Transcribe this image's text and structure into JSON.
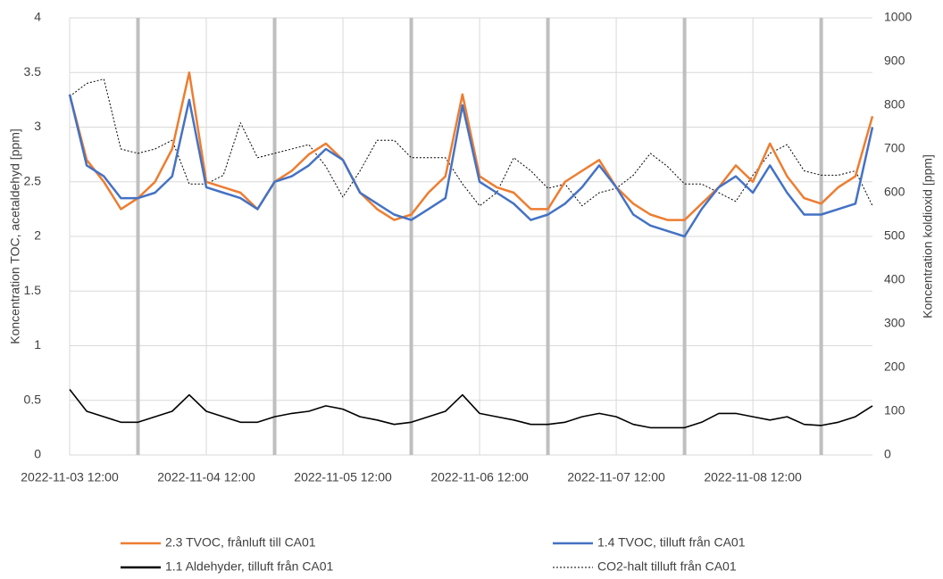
{
  "chart_data": {
    "type": "line",
    "y_label": "Koncentration TOC, acetaldehyd [ppm]",
    "y2_label": "Koncentration koldioxid [ppm]",
    "x": [
      "2022-11-03 12:00",
      "2022-11-03 15:00",
      "2022-11-03 18:00",
      "2022-11-03 21:00",
      "2022-11-04 00:00",
      "2022-11-04 03:00",
      "2022-11-04 06:00",
      "2022-11-04 09:00",
      "2022-11-04 12:00",
      "2022-11-04 15:00",
      "2022-11-04 18:00",
      "2022-11-04 21:00",
      "2022-11-05 00:00",
      "2022-11-05 03:00",
      "2022-11-05 06:00",
      "2022-11-05 09:00",
      "2022-11-05 12:00",
      "2022-11-05 15:00",
      "2022-11-05 18:00",
      "2022-11-05 21:00",
      "2022-11-06 00:00",
      "2022-11-06 03:00",
      "2022-11-06 06:00",
      "2022-11-06 09:00",
      "2022-11-06 12:00",
      "2022-11-06 15:00",
      "2022-11-06 18:00",
      "2022-11-06 21:00",
      "2022-11-07 00:00",
      "2022-11-07 03:00",
      "2022-11-07 06:00",
      "2022-11-07 09:00",
      "2022-11-07 12:00",
      "2022-11-07 15:00",
      "2022-11-07 18:00",
      "2022-11-07 21:00",
      "2022-11-08 00:00",
      "2022-11-08 03:00",
      "2022-11-08 06:00",
      "2022-11-08 09:00",
      "2022-11-08 12:00",
      "2022-11-08 15:00",
      "2022-11-08 18:00",
      "2022-11-08 21:00",
      "2022-11-09 00:00",
      "2022-11-09 03:00",
      "2022-11-09 06:00",
      "2022-11-09 09:00"
    ],
    "xlim": [
      "2022-11-03 12:00",
      "2022-11-09 09:00"
    ],
    "xticks": [
      "2022-11-03 12:00",
      "2022-11-04 12:00",
      "2022-11-05 12:00",
      "2022-11-06 12:00",
      "2022-11-07 12:00",
      "2022-11-08 12:00"
    ],
    "ylim": [
      0,
      4
    ],
    "yticks": [
      0,
      0.5,
      1,
      1.5,
      2,
      2.5,
      3,
      3.5,
      4
    ],
    "y2lim": [
      0,
      1000
    ],
    "y2ticks": [
      0,
      100,
      200,
      300,
      400,
      500,
      600,
      700,
      800,
      900,
      1000
    ],
    "grid": true,
    "legend": "bottom",
    "series": [
      {
        "name": "2.3 TVOC, frånluft till CA01",
        "color": "#ed7d31",
        "line_style": "solid",
        "axis": "y",
        "values": [
          3.3,
          2.7,
          2.5,
          2.25,
          2.35,
          2.5,
          2.8,
          3.5,
          2.5,
          2.45,
          2.4,
          2.25,
          2.5,
          2.6,
          2.75,
          2.85,
          2.7,
          2.4,
          2.25,
          2.15,
          2.2,
          2.4,
          2.55,
          3.3,
          2.55,
          2.45,
          2.4,
          2.25,
          2.25,
          2.5,
          2.6,
          2.7,
          2.45,
          2.3,
          2.2,
          2.15,
          2.15,
          2.3,
          2.45,
          2.65,
          2.5,
          2.85,
          2.55,
          2.35,
          2.3,
          2.45,
          2.55,
          3.1
        ]
      },
      {
        "name": "1.4 TVOC, tilluft från CA01",
        "color": "#4472c4",
        "line_style": "solid",
        "axis": "y",
        "values": [
          3.3,
          2.65,
          2.55,
          2.35,
          2.35,
          2.4,
          2.55,
          3.25,
          2.45,
          2.4,
          2.35,
          2.25,
          2.5,
          2.55,
          2.65,
          2.8,
          2.7,
          2.4,
          2.3,
          2.2,
          2.15,
          2.25,
          2.35,
          3.2,
          2.5,
          2.4,
          2.3,
          2.15,
          2.2,
          2.3,
          2.45,
          2.65,
          2.45,
          2.2,
          2.1,
          2.05,
          2.0,
          2.25,
          2.45,
          2.55,
          2.4,
          2.65,
          2.4,
          2.2,
          2.2,
          2.25,
          2.3,
          3.0
        ]
      },
      {
        "name": "1.1 Aldehyder, tilluft från CA01",
        "color": "#000000",
        "line_style": "solid",
        "axis": "y",
        "values": [
          0.6,
          0.4,
          0.35,
          0.3,
          0.3,
          0.35,
          0.4,
          0.55,
          0.4,
          0.35,
          0.3,
          0.3,
          0.35,
          0.38,
          0.4,
          0.45,
          0.42,
          0.35,
          0.32,
          0.28,
          0.3,
          0.35,
          0.4,
          0.55,
          0.38,
          0.35,
          0.32,
          0.28,
          0.28,
          0.3,
          0.35,
          0.38,
          0.35,
          0.28,
          0.25,
          0.25,
          0.25,
          0.3,
          0.38,
          0.38,
          0.35,
          0.32,
          0.35,
          0.28,
          0.27,
          0.3,
          0.35,
          0.45
        ]
      },
      {
        "name": "CO2-halt tilluft från CA01",
        "color": "#000000",
        "line_style": "dotted",
        "axis": "y2",
        "values": [
          820,
          850,
          860,
          700,
          690,
          700,
          720,
          620,
          620,
          640,
          760,
          680,
          690,
          700,
          710,
          660,
          590,
          650,
          720,
          720,
          680,
          680,
          680,
          620,
          570,
          600,
          680,
          650,
          610,
          620,
          570,
          600,
          610,
          640,
          690,
          660,
          620,
          620,
          600,
          580,
          640,
          690,
          710,
          650,
          640,
          640,
          650,
          570
        ]
      }
    ]
  }
}
